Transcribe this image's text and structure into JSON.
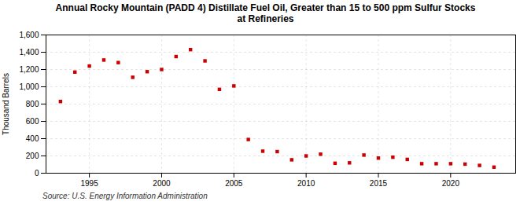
{
  "chart_data": {
    "type": "scatter",
    "title": "Annual Rocky Mountain (PADD 4) Distillate Fuel Oil, Greater than 15 to 500 ppm Sulfur Stocks\nat Refineries",
    "ylabel": "Thousand Barrels",
    "source": "Source: U.S. Energy Information Administration",
    "x": [
      1993,
      1994,
      1995,
      1996,
      1997,
      1998,
      1999,
      2000,
      2001,
      2002,
      2003,
      2004,
      2005,
      2006,
      2007,
      2008,
      2009,
      2010,
      2011,
      2012,
      2013,
      2014,
      2015,
      2016,
      2017,
      2018,
      2019,
      2020,
      2021,
      2022,
      2023
    ],
    "values": [
      830,
      1170,
      1240,
      1310,
      1280,
      1110,
      1175,
      1200,
      1350,
      1430,
      1300,
      970,
      1010,
      390,
      255,
      250,
      155,
      200,
      220,
      115,
      120,
      210,
      175,
      185,
      160,
      110,
      110,
      110,
      105,
      90,
      70
    ],
    "color": "#cc0000",
    "marker": "square",
    "xlim": [
      1992,
      2024.5
    ],
    "xticks": [
      1995,
      2000,
      2005,
      2010,
      2015,
      2020
    ],
    "ylim": [
      0,
      1600
    ],
    "yticks": [
      0,
      200,
      400,
      600,
      800,
      {
        "value": 1000,
        "label": "1,000"
      },
      {
        "value": 1200,
        "label": "1,200"
      },
      {
        "value": 1400,
        "label": "1,400"
      },
      {
        "value": 1600,
        "label": "1,600"
      }
    ],
    "grid": true
  }
}
